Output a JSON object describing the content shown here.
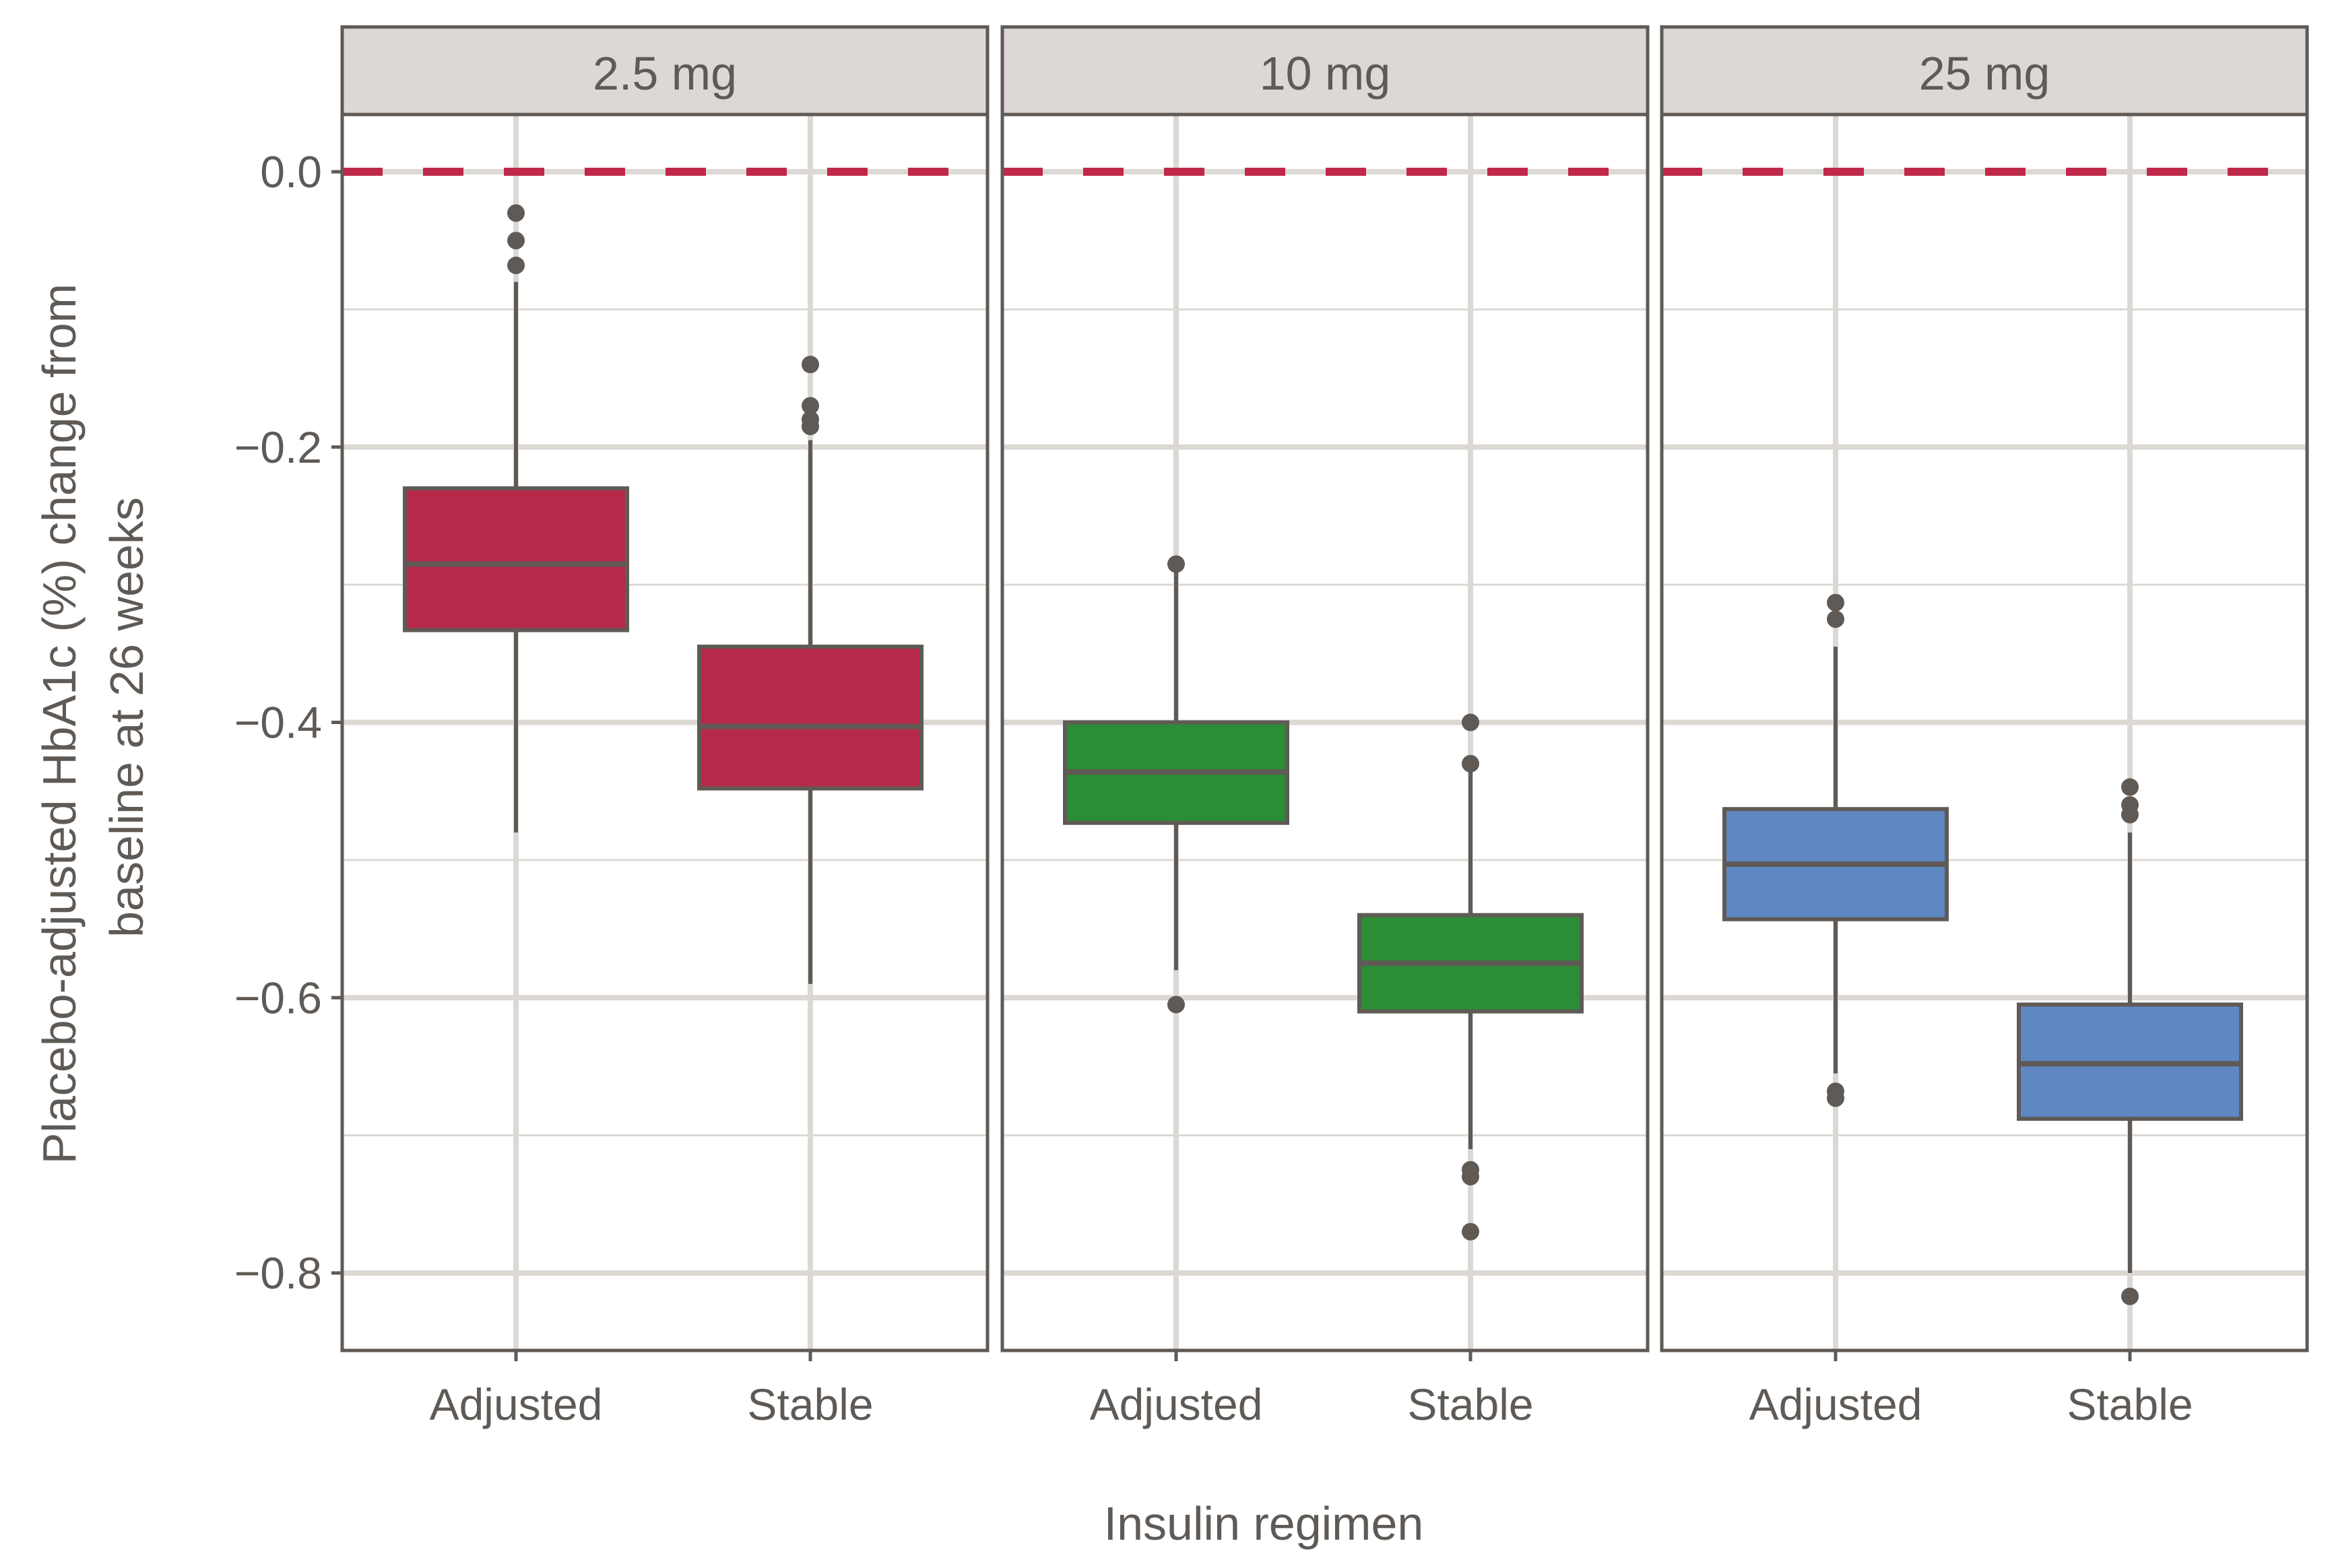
{
  "chart_data": {
    "type": "boxplot",
    "xlabel": "Insulin regimen",
    "ylabel_lines": [
      "Placebo-adjusted HbA1c (%) change from",
      "baseline at 26 weeks"
    ],
    "ylim": [
      -0.855,
      0.04
    ],
    "yticks": [
      0.0,
      -0.2,
      -0.4,
      -0.6,
      -0.8
    ],
    "ytick_labels": [
      "0.0",
      "−0.2",
      "−0.4",
      "−0.6",
      "−0.8"
    ],
    "reference_line": {
      "y": 0.0,
      "style": "dashed",
      "color": "#c0284a"
    },
    "categories": [
      "Adjusted",
      "Stable"
    ],
    "colors": {
      "box_outline": "#5f5a55",
      "grid": "#dcd8d4",
      "strip_bg": "#ddd8d5"
    },
    "panels": [
      {
        "label": "2.5 mg",
        "fill": "#b7294a",
        "boxes": [
          {
            "category": "Adjusted",
            "whisker_low": -0.48,
            "q1": -0.333,
            "median": -0.285,
            "q3": -0.23,
            "whisker_high": -0.08,
            "outliers": [
              -0.03,
              -0.05,
              -0.068
            ]
          },
          {
            "category": "Stable",
            "whisker_low": -0.59,
            "q1": -0.448,
            "median": -0.403,
            "q3": -0.345,
            "whisker_high": -0.195,
            "outliers": [
              -0.14,
              -0.17,
              -0.18,
              -0.185
            ]
          }
        ]
      },
      {
        "label": "10 mg",
        "fill": "#2b8d35",
        "boxes": [
          {
            "category": "Adjusted",
            "whisker_low": -0.58,
            "q1": -0.473,
            "median": -0.436,
            "q3": -0.4,
            "whisker_high": -0.29,
            "outliers": [
              -0.285,
              -0.605
            ]
          },
          {
            "category": "Stable",
            "whisker_low": -0.71,
            "q1": -0.61,
            "median": -0.575,
            "q3": -0.54,
            "whisker_high": -0.435,
            "outliers": [
              -0.4,
              -0.43,
              -0.725,
              -0.73,
              -0.77
            ]
          }
        ]
      },
      {
        "label": "25 mg",
        "fill": "#5f87c2",
        "boxes": [
          {
            "category": "Adjusted",
            "whisker_low": -0.655,
            "q1": -0.543,
            "median": -0.503,
            "q3": -0.463,
            "whisker_high": -0.345,
            "outliers": [
              -0.313,
              -0.325,
              -0.668,
              -0.673
            ]
          },
          {
            "category": "Stable",
            "whisker_low": -0.8,
            "q1": -0.688,
            "median": -0.648,
            "q3": -0.605,
            "whisker_high": -0.48,
            "outliers": [
              -0.447,
              -0.46,
              -0.467,
              -0.817
            ]
          }
        ]
      }
    ]
  }
}
